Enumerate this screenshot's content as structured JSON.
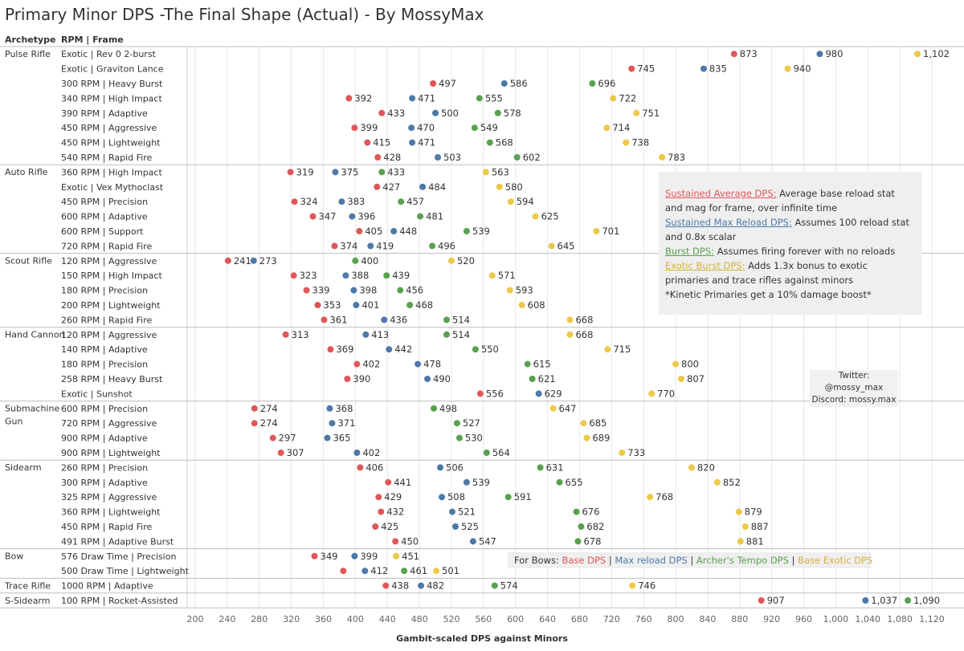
{
  "title": "Primary Minor DPS -The Final Shape (Actual) - By MossyMax",
  "headers": {
    "archetype": "Archetype",
    "frame": "RPM | Frame"
  },
  "colors": {
    "sustained_avg": "#e15759",
    "sustained_max": "#4e79a7",
    "burst": "#59a14f",
    "exotic_burst": "#edc948"
  },
  "chart_data": {
    "type": "scatter",
    "xlabel": "Gambit-scaled DPS against Minors",
    "xlim": [
      200,
      1120
    ],
    "xticks": [
      "200",
      "240",
      "280",
      "320",
      "360",
      "400",
      "440",
      "480",
      "520",
      "560",
      "600",
      "640",
      "680",
      "720",
      "760",
      "800",
      "840",
      "880",
      "920",
      "960",
      "1,000",
      "1,040",
      "1,080",
      "1,120"
    ],
    "series_names": [
      "Sustained Average DPS",
      "Sustained Max Reload DPS",
      "Burst DPS",
      "Exotic Burst DPS"
    ],
    "groups": [
      {
        "archetype": "Pulse Rifle",
        "rows": [
          {
            "frame": "Exotic | Rev 0 2-burst",
            "values": [
              873,
              980,
              null,
              1102
            ],
            "labels": [
              "873",
              "980",
              "",
              "1,102"
            ]
          },
          {
            "frame": "Exotic | Graviton Lance",
            "values": [
              745,
              835,
              null,
              940
            ],
            "labels": [
              "745",
              "835",
              "",
              "940"
            ]
          },
          {
            "frame": "300 RPM | Heavy Burst",
            "values": [
              497,
              586,
              696,
              null
            ],
            "labels": [
              "497",
              "586",
              "696",
              ""
            ]
          },
          {
            "frame": "340 RPM | High Impact",
            "values": [
              392,
              471,
              555,
              722
            ],
            "labels": [
              "392",
              "471",
              "555",
              "722"
            ]
          },
          {
            "frame": "390 RPM | Adaptive",
            "values": [
              433,
              500,
              578,
              751
            ],
            "labels": [
              "433",
              "500",
              "578",
              "751"
            ]
          },
          {
            "frame": "450 RPM | Aggressive",
            "values": [
              399,
              470,
              549,
              714
            ],
            "labels": [
              "399",
              "470",
              "549",
              "714"
            ]
          },
          {
            "frame": "450 RPM | Lightweight",
            "values": [
              415,
              471,
              568,
              738
            ],
            "labels": [
              "415",
              "471",
              "568",
              "738"
            ]
          },
          {
            "frame": "540 RPM | Rapid Fire",
            "values": [
              428,
              503,
              602,
              783
            ],
            "labels": [
              "428",
              "503",
              "602",
              "783"
            ]
          }
        ]
      },
      {
        "archetype": "Auto Rifle",
        "rows": [
          {
            "frame": "360 RPM | High Impact",
            "values": [
              319,
              375,
              433,
              563
            ],
            "labels": [
              "319",
              "375",
              "433",
              "563"
            ]
          },
          {
            "frame": "Exotic | Vex Mythoclast",
            "values": [
              427,
              484,
              null,
              580
            ],
            "labels": [
              "427",
              "484",
              "",
              "580"
            ]
          },
          {
            "frame": "450 RPM | Precision",
            "values": [
              324,
              383,
              457,
              594
            ],
            "labels": [
              "324",
              "383",
              "457",
              "594"
            ]
          },
          {
            "frame": "600 RPM | Adaptive",
            "values": [
              347,
              396,
              481,
              625
            ],
            "labels": [
              "347",
              "396",
              "481",
              "625"
            ]
          },
          {
            "frame": "600 RPM | Support",
            "values": [
              405,
              448,
              539,
              701
            ],
            "labels": [
              "405",
              "448",
              "539",
              "701"
            ]
          },
          {
            "frame": "720 RPM | Rapid Fire",
            "values": [
              374,
              419,
              496,
              645
            ],
            "labels": [
              "374",
              "419",
              "496",
              "645"
            ]
          }
        ]
      },
      {
        "archetype": "Scout Rifle",
        "rows": [
          {
            "frame": "120 RPM | Aggressive",
            "values": [
              241,
              273,
              400,
              520
            ],
            "labels": [
              "241",
              "273",
              "400",
              "520"
            ]
          },
          {
            "frame": "150 RPM | High Impact",
            "values": [
              323,
              388,
              439,
              571
            ],
            "labels": [
              "323",
              "388",
              "439",
              "571"
            ]
          },
          {
            "frame": "180 RPM | Precision",
            "values": [
              339,
              398,
              456,
              593
            ],
            "labels": [
              "339",
              "398",
              "456",
              "593"
            ]
          },
          {
            "frame": "200 RPM | Lightweight",
            "values": [
              353,
              401,
              468,
              608
            ],
            "labels": [
              "353",
              "401",
              "468",
              "608"
            ]
          },
          {
            "frame": "260 RPM | Rapid Fire",
            "values": [
              361,
              436,
              514,
              668
            ],
            "labels": [
              "361",
              "436",
              "514",
              "668"
            ]
          }
        ]
      },
      {
        "archetype": "Hand Cannon",
        "rows": [
          {
            "frame": "120 RPM | Aggressive",
            "values": [
              313,
              413,
              514,
              668
            ],
            "labels": [
              "313",
              "413",
              "514",
              "668"
            ]
          },
          {
            "frame": "140 RPM | Adaptive",
            "values": [
              369,
              442,
              550,
              715
            ],
            "labels": [
              "369",
              "442",
              "550",
              "715"
            ]
          },
          {
            "frame": "180 RPM | Precision",
            "values": [
              402,
              478,
              615,
              800
            ],
            "labels": [
              "402",
              "478",
              "615",
              "800"
            ]
          },
          {
            "frame": "258 RPM | Heavy Burst",
            "values": [
              390,
              490,
              621,
              807
            ],
            "labels": [
              "390",
              "490",
              "621",
              "807"
            ]
          },
          {
            "frame": "Exotic | Sunshot",
            "values": [
              556,
              629,
              null,
              770
            ],
            "labels": [
              "556",
              "629",
              "",
              "770"
            ]
          }
        ]
      },
      {
        "archetype": "Submachine Gun",
        "rows": [
          {
            "frame": "600 RPM | Precision",
            "values": [
              274,
              368,
              498,
              647
            ],
            "labels": [
              "274",
              "368",
              "498",
              "647"
            ]
          },
          {
            "frame": "720 RPM | Aggressive",
            "values": [
              274,
              371,
              527,
              685
            ],
            "labels": [
              "274",
              "371",
              "527",
              "685"
            ]
          },
          {
            "frame": "900 RPM | Adaptive",
            "values": [
              297,
              365,
              530,
              689
            ],
            "labels": [
              "297",
              "365",
              "530",
              "689"
            ]
          },
          {
            "frame": "900 RPM | Lightweight",
            "values": [
              307,
              402,
              564,
              733
            ],
            "labels": [
              "307",
              "402",
              "564",
              "733"
            ]
          }
        ]
      },
      {
        "archetype": "Sidearm",
        "rows": [
          {
            "frame": "260 RPM | Precision",
            "values": [
              406,
              506,
              631,
              820
            ],
            "labels": [
              "406",
              "506",
              "631",
              "820"
            ]
          },
          {
            "frame": "300 RPM | Adaptive",
            "values": [
              441,
              539,
              655,
              852
            ],
            "labels": [
              "441",
              "539",
              "655",
              "852"
            ]
          },
          {
            "frame": "325 RPM | Aggressive",
            "values": [
              429,
              508,
              591,
              768
            ],
            "labels": [
              "429",
              "508",
              "591",
              "768"
            ]
          },
          {
            "frame": "360 RPM | Lightweight",
            "values": [
              432,
              521,
              676,
              879
            ],
            "labels": [
              "432",
              "521",
              "676",
              "879"
            ]
          },
          {
            "frame": "450 RPM | Rapid Fire",
            "values": [
              425,
              525,
              682,
              887
            ],
            "labels": [
              "425",
              "525",
              "682",
              "887"
            ]
          },
          {
            "frame": "491 RPM | Adaptive Burst",
            "values": [
              450,
              547,
              678,
              881
            ],
            "labels": [
              "450",
              "547",
              "678",
              "881"
            ]
          }
        ]
      },
      {
        "archetype": "Bow",
        "rows": [
          {
            "frame": "576 Draw Time | Precision",
            "values": [
              349,
              399,
              451,
              451
            ],
            "labels": [
              "349",
              "399",
              "",
              "451"
            ]
          },
          {
            "frame": "500 Draw Time | Lightweight",
            "values": [
              385,
              412,
              461,
              501
            ],
            "labels": [
              "",
              "412",
              "461",
              "501"
            ]
          }
        ]
      },
      {
        "archetype": "Trace Rifle",
        "rows": [
          {
            "frame": "1000 RPM | Adaptive",
            "values": [
              438,
              482,
              574,
              746
            ],
            "labels": [
              "438",
              "482",
              "574",
              "746"
            ]
          }
        ]
      },
      {
        "archetype": "S-Sidearm",
        "rows": [
          {
            "frame": "100 RPM | Rocket-Assisted",
            "values": [
              907,
              1037,
              1090,
              null
            ],
            "labels": [
              "907",
              "1,037",
              "1,090",
              ""
            ]
          }
        ]
      }
    ]
  },
  "legend": {
    "sustained_avg_label": "Sustained Average DPS:",
    "sustained_avg_text": " Average base reload stat and mag for frame, over infinite time",
    "sustained_max_label": "Sustained Max Reload DPS:",
    "sustained_max_text": " Assumes 100 reload stat and 0.8x scalar",
    "burst_label": "Burst DPS:",
    "burst_text": " Assumes firing forever with no reloads",
    "exotic_label": "Exotic Burst DPS:",
    "exotic_text": " Adds 1.3x bonus to exotic primaries and trace rifles against minors",
    "kinetic_note": "*Kinetic Primaries get a 10% damage boost*"
  },
  "contact": {
    "twitter_label": "Twitter:",
    "twitter_handle": "@mossy_max",
    "discord_label": "Discord:",
    "discord_handle": "mossy.max"
  },
  "bows_note": {
    "prefix": "For Bows: ",
    "base": "Base DPS",
    "sep1": " | ",
    "max": "Max reload DPS",
    "sep2": " | ",
    "tempo": "Archer's Tempo DPS",
    "sep3": " | ",
    "exotic": "Base Exotic DPS"
  }
}
